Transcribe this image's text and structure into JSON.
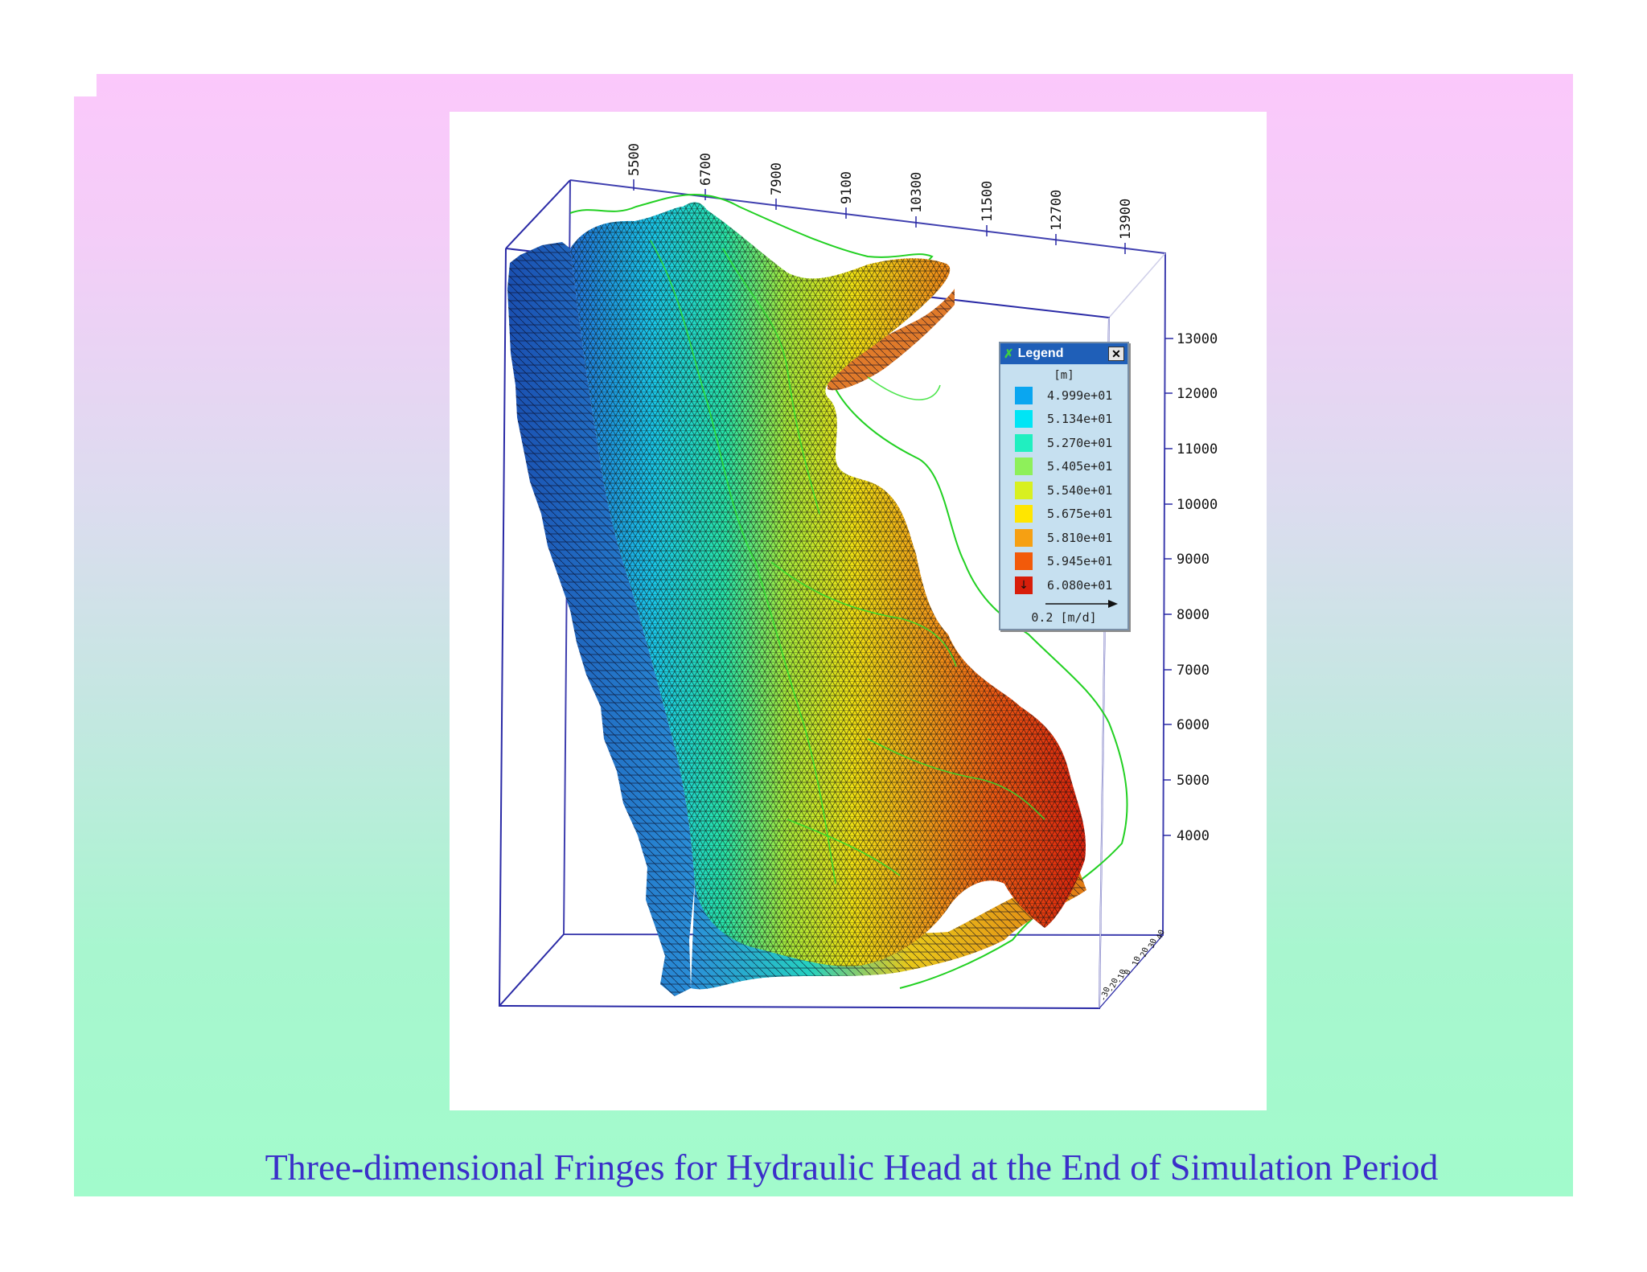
{
  "caption": "Three-dimensional Fringes for Hydraulic Head at the End of Simulation Period",
  "x_axis_ticks": [
    "5500",
    "6700",
    "7900",
    "9100",
    "10300",
    "11500",
    "12700",
    "13900"
  ],
  "y_axis_ticks": [
    "13000",
    "12000",
    "11000",
    "10000",
    "9000",
    "8000",
    "7000",
    "6000",
    "5000",
    "4000"
  ],
  "z_axis_ticks": [
    "40",
    "30",
    "20",
    "10",
    "0",
    "-10",
    "-20",
    "-30"
  ],
  "legend": {
    "title": "Legend",
    "close_symbol": "✕",
    "unit": "[m]",
    "entries": [
      {
        "value": "4.999e+01",
        "color": "#0aa6f0"
      },
      {
        "value": "5.134e+01",
        "color": "#00e5f5"
      },
      {
        "value": "5.270e+01",
        "color": "#20efc0"
      },
      {
        "value": "5.405e+01",
        "color": "#8ef05a"
      },
      {
        "value": "5.540e+01",
        "color": "#d8f020"
      },
      {
        "value": "5.675e+01",
        "color": "#ffe600"
      },
      {
        "value": "5.810e+01",
        "color": "#f6a012"
      },
      {
        "value": "5.945e+01",
        "color": "#f25a0a"
      },
      {
        "value": "6.080e+01",
        "color": "#d81e0a"
      }
    ],
    "velocity_label": "0.2 [m/d]"
  },
  "colors": {
    "caption": "#3a2fc9",
    "bounding_box": "#2a2aa6",
    "mesh_line": "#101010",
    "contour": "#22d022"
  }
}
